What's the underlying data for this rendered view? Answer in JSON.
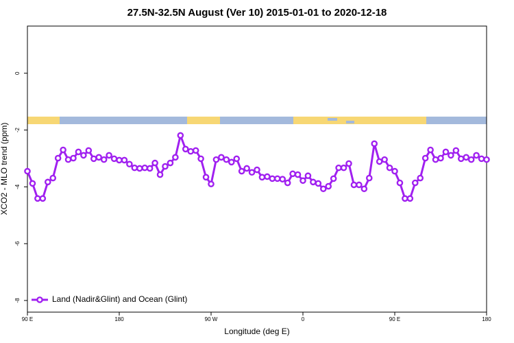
{
  "chart_data": {
    "type": "line",
    "title": "27.5N-32.5N August (Ver 10)   2015-01-01 to 2020-12-18",
    "xlabel": "Longitude (deg E)",
    "ylabel": "XCO2 - MLO trend (ppm)",
    "x": [
      90,
      95,
      100,
      105,
      110,
      115,
      120,
      125,
      130,
      135,
      140,
      145,
      150,
      155,
      160,
      165,
      170,
      175,
      180,
      185,
      190,
      195,
      200,
      205,
      210,
      215,
      220,
      225,
      230,
      235,
      240,
      245,
      250,
      255,
      260,
      265,
      270,
      275,
      280,
      285,
      290,
      295,
      300,
      305,
      310,
      315,
      320,
      325,
      330,
      335,
      340,
      345,
      350,
      355,
      360,
      365,
      370,
      375,
      380,
      385,
      390,
      395,
      400,
      405,
      410,
      415,
      420,
      425,
      430,
      435,
      440,
      445,
      450,
      455,
      460,
      465,
      470,
      475,
      480,
      485,
      490,
      495,
      500,
      505,
      510,
      515,
      520,
      525,
      530,
      535,
      540
    ],
    "series": [
      {
        "name": "Land (Nadir&Glint) and Ocean (Glint)",
        "color": "#a020f0",
        "values": [
          -3.45,
          -3.88,
          -4.41,
          -4.41,
          -3.83,
          -3.69,
          -2.99,
          -2.7,
          -3.04,
          -2.99,
          -2.77,
          -2.89,
          -2.72,
          -3.01,
          -2.96,
          -3.04,
          -2.89,
          -3.01,
          -3.06,
          -3.06,
          -3.2,
          -3.33,
          -3.35,
          -3.33,
          -3.35,
          -3.16,
          -3.57,
          -3.28,
          -3.16,
          -2.96,
          -2.19,
          -2.67,
          -2.75,
          -2.72,
          -3.01,
          -3.66,
          -3.9,
          -3.04,
          -2.96,
          -3.04,
          -3.13,
          -3.01,
          -3.45,
          -3.35,
          -3.49,
          -3.4,
          -3.66,
          -3.64,
          -3.71,
          -3.71,
          -3.73,
          -3.86,
          -3.54,
          -3.57,
          -3.78,
          -3.61,
          -3.83,
          -3.88,
          -4.07,
          -3.98,
          -3.71,
          -3.33,
          -3.33,
          -3.18,
          -3.93,
          -3.93,
          -4.07,
          -3.69,
          -2.48,
          -3.11,
          -3.04,
          -3.33,
          -3.45,
          -3.86,
          -4.41,
          -4.41,
          -3.86,
          -3.69,
          -2.99,
          -2.7,
          -3.04,
          -2.99,
          -2.77,
          -2.89,
          -2.72,
          -3.01,
          -2.96,
          -3.04,
          -2.89,
          -3.01,
          -3.04
        ]
      }
    ],
    "xlim": [
      90,
      540
    ],
    "xticks": [
      {
        "value": 90,
        "label": "90 E"
      },
      180,
      {
        "value": 270,
        "label": "90 W"
      },
      {
        "value": 360,
        "label": "0"
      },
      {
        "value": 450,
        "label": "90 E"
      },
      {
        "value": 540,
        "label": "180"
      }
    ],
    "ylim": [
      -8.41,
      1.66
    ],
    "yticks": [
      0,
      -2,
      -4,
      -6,
      -8
    ],
    "grid": false,
    "legend": "bottom left"
  }
}
